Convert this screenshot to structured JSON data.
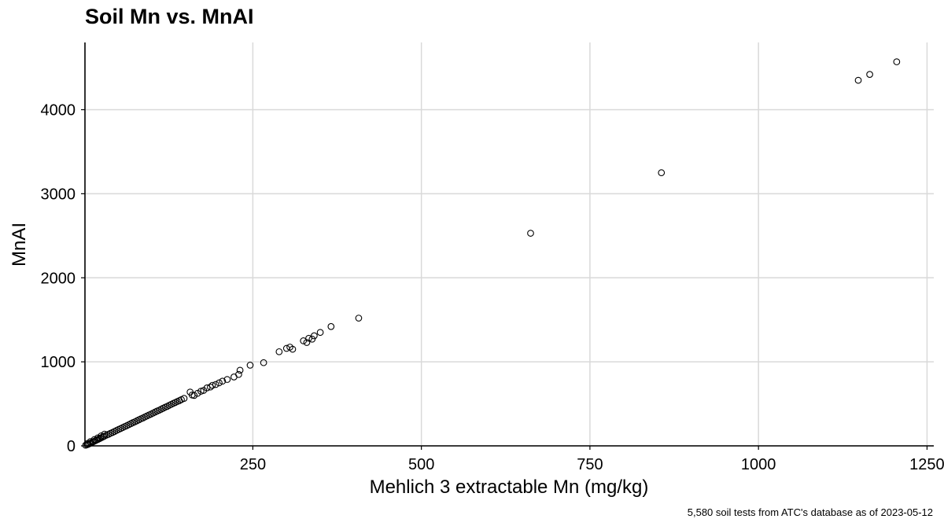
{
  "chart_data": {
    "type": "scatter",
    "title": "Soil Mn vs. MnAI",
    "xlabel": "Mehlich 3 extractable Mn (mg/kg)",
    "ylabel": "MnAI",
    "caption": "5,580 soil tests from ATC's database as of 2023-05-12",
    "xlim": [
      1,
      1260
    ],
    "ylim": [
      0,
      4800
    ],
    "x_ticks": [
      250,
      500,
      750,
      1000,
      1250
    ],
    "x_tick_labels": [
      "250",
      "500",
      "750",
      "1000",
      "1250"
    ],
    "y_ticks": [
      0,
      1000,
      2000,
      3000,
      4000
    ],
    "y_tick_labels": [
      "0",
      "1000",
      "2000",
      "3000",
      "4000"
    ],
    "grid": true,
    "marker": "open-circle",
    "points": [
      [
        2,
        8
      ],
      [
        4,
        14
      ],
      [
        6,
        20
      ],
      [
        8,
        28
      ],
      [
        10,
        36
      ],
      [
        12,
        44
      ],
      [
        14,
        52
      ],
      [
        16,
        60
      ],
      [
        18,
        68
      ],
      [
        20,
        76
      ],
      [
        22,
        84
      ],
      [
        24,
        92
      ],
      [
        26,
        100
      ],
      [
        28,
        108
      ],
      [
        30,
        116
      ],
      [
        33,
        128
      ],
      [
        36,
        138
      ],
      [
        39,
        150
      ],
      [
        42,
        160
      ],
      [
        45,
        172
      ],
      [
        48,
        184
      ],
      [
        51,
        196
      ],
      [
        54,
        206
      ],
      [
        57,
        218
      ],
      [
        60,
        230
      ],
      [
        63,
        240
      ],
      [
        66,
        252
      ],
      [
        69,
        264
      ],
      [
        72,
        276
      ],
      [
        75,
        286
      ],
      [
        78,
        298
      ],
      [
        81,
        310
      ],
      [
        84,
        322
      ],
      [
        87,
        332
      ],
      [
        90,
        344
      ],
      [
        93,
        356
      ],
      [
        96,
        368
      ],
      [
        99,
        378
      ],
      [
        102,
        390
      ],
      [
        105,
        402
      ],
      [
        108,
        414
      ],
      [
        111,
        424
      ],
      [
        114,
        436
      ],
      [
        117,
        448
      ],
      [
        120,
        460
      ],
      [
        123,
        470
      ],
      [
        126,
        482
      ],
      [
        129,
        494
      ],
      [
        132,
        506
      ],
      [
        135,
        516
      ],
      [
        138,
        528
      ],
      [
        141,
        538
      ],
      [
        144,
        550
      ],
      [
        148,
        565
      ],
      [
        5,
        30
      ],
      [
        9,
        50
      ],
      [
        15,
        75
      ],
      [
        20,
        95
      ],
      [
        25,
        118
      ],
      [
        30,
        140
      ],
      [
        157,
        640
      ],
      [
        160,
        605
      ],
      [
        163,
        600
      ],
      [
        168,
        625
      ],
      [
        173,
        650
      ],
      [
        177,
        660
      ],
      [
        182,
        690
      ],
      [
        187,
        700
      ],
      [
        190,
        720
      ],
      [
        195,
        730
      ],
      [
        200,
        750
      ],
      [
        205,
        770
      ],
      [
        212,
        790
      ],
      [
        222,
        820
      ],
      [
        229,
        850
      ],
      [
        231,
        900
      ],
      [
        246,
        960
      ],
      [
        266,
        990
      ],
      [
        289,
        1120
      ],
      [
        300,
        1160
      ],
      [
        305,
        1175
      ],
      [
        309,
        1150
      ],
      [
        325,
        1250
      ],
      [
        330,
        1230
      ],
      [
        333,
        1280
      ],
      [
        338,
        1270
      ],
      [
        341,
        1310
      ],
      [
        350,
        1350
      ],
      [
        366,
        1420
      ],
      [
        407,
        1520
      ],
      [
        662,
        2530
      ],
      [
        856,
        3250
      ],
      [
        1148,
        4350
      ],
      [
        1165,
        4420
      ],
      [
        1205,
        4570
      ]
    ]
  }
}
